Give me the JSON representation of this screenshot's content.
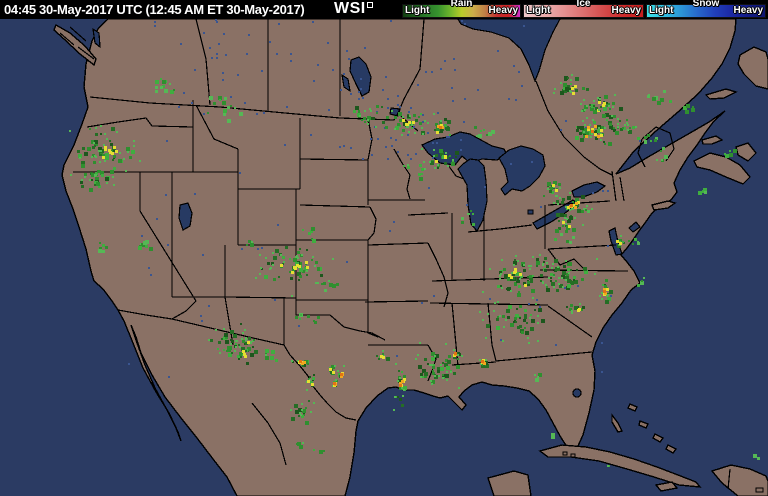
{
  "header": {
    "timestamp": "04:45 30-May-2017 UTC (12:45 AM ET 30-May-2017)",
    "brand": "WSI",
    "bg_color": "#000000",
    "text_color": "#ffffff",
    "legends": [
      {
        "label": "Rain",
        "light": "Light",
        "heavy": "Heavy",
        "stops": [
          "#123f12",
          "#1d5c1d",
          "#2a7d2a",
          "#37932e",
          "#6cb42c",
          "#b8cc2a",
          "#ccad4a",
          "#c08046",
          "#c23030",
          "#cb2424",
          "#cd2fcd"
        ]
      },
      {
        "label": "Ice",
        "light": "Light",
        "heavy": "Heavy",
        "stops": [
          "#efc9c9",
          "#eaafaf",
          "#e49191",
          "#dc6f6f",
          "#d44c4c",
          "#cc2c2c",
          "#c61f1f"
        ]
      },
      {
        "label": "Snow",
        "light": "Light",
        "heavy": "Heavy",
        "stops": [
          "#3ae2ea",
          "#32c0e2",
          "#2c96d6",
          "#2768ca",
          "#2140ba",
          "#1b28a4",
          "#131c86",
          "#0e1670"
        ]
      }
    ]
  },
  "map": {
    "colors": {
      "ocean": "#2b3b63",
      "land": "#8a7165",
      "border": "#000000",
      "lake": "#273a63",
      "water_speckle": "#3a5590",
      "radar_green_dark": "#1d571d",
      "radar_green": "#256e25",
      "radar_green_mid": "#2f8f2f",
      "radar_green_light": "#3fae3f",
      "radar_green_pale": "#55b855",
      "radar_yellow": "#e6df32",
      "radar_orange": "#f0a820",
      "radar_orange_deep": "#e27414"
    },
    "radar_clusters": [
      [
        160,
        66,
        18,
        14,
        12,
        0
      ],
      [
        222,
        88,
        26,
        20,
        14,
        0
      ],
      [
        103,
        131,
        30,
        24,
        45,
        2
      ],
      [
        95,
        160,
        20,
        18,
        22,
        1
      ],
      [
        140,
        225,
        12,
        10,
        8,
        0
      ],
      [
        104,
        228,
        10,
        8,
        6,
        0
      ],
      [
        368,
        96,
        20,
        12,
        16,
        1
      ],
      [
        406,
        104,
        26,
        14,
        28,
        2
      ],
      [
        440,
        108,
        16,
        10,
        14,
        3
      ],
      [
        483,
        112,
        14,
        8,
        8,
        0
      ],
      [
        416,
        148,
        14,
        12,
        10,
        0
      ],
      [
        572,
        68,
        20,
        12,
        18,
        2
      ],
      [
        600,
        86,
        24,
        14,
        24,
        2
      ],
      [
        592,
        112,
        24,
        16,
        30,
        3
      ],
      [
        624,
        106,
        18,
        12,
        14,
        1
      ],
      [
        648,
        120,
        14,
        8,
        8,
        0
      ],
      [
        657,
        76,
        16,
        9,
        8,
        0
      ],
      [
        688,
        88,
        10,
        6,
        5,
        0
      ],
      [
        660,
        135,
        12,
        9,
        6,
        0
      ],
      [
        700,
        172,
        9,
        6,
        4,
        0
      ],
      [
        725,
        133,
        10,
        5,
        5,
        0
      ],
      [
        442,
        138,
        18,
        11,
        18,
        2
      ],
      [
        470,
        198,
        9,
        11,
        7,
        0
      ],
      [
        550,
        168,
        13,
        9,
        11,
        2
      ],
      [
        571,
        186,
        17,
        12,
        22,
        3
      ],
      [
        567,
        205,
        13,
        9,
        11,
        2
      ],
      [
        590,
        190,
        8,
        5,
        4,
        0
      ],
      [
        514,
        256,
        32,
        20,
        42,
        2
      ],
      [
        545,
        244,
        13,
        9,
        9,
        1
      ],
      [
        564,
        216,
        11,
        7,
        6,
        0
      ],
      [
        294,
        246,
        36,
        22,
        46,
        2
      ],
      [
        328,
        262,
        13,
        9,
        7,
        0
      ],
      [
        310,
        214,
        11,
        7,
        6,
        0
      ],
      [
        248,
        222,
        10,
        7,
        5,
        0
      ],
      [
        564,
        256,
        27,
        18,
        36,
        1
      ],
      [
        604,
        272,
        6,
        13,
        10,
        3
      ],
      [
        619,
        223,
        8,
        6,
        6,
        2
      ],
      [
        631,
        222,
        9,
        5,
        5,
        0
      ],
      [
        641,
        262,
        9,
        5,
        5,
        0
      ],
      [
        575,
        288,
        11,
        6,
        7,
        2
      ],
      [
        513,
        300,
        32,
        18,
        36,
        1
      ],
      [
        482,
        342,
        6,
        8,
        8,
        3
      ],
      [
        436,
        348,
        30,
        20,
        38,
        1
      ],
      [
        400,
        366,
        7,
        24,
        16,
        3
      ],
      [
        381,
        336,
        6,
        5,
        5,
        2
      ],
      [
        455,
        334,
        5,
        4,
        4,
        3
      ],
      [
        305,
        298,
        18,
        7,
        8,
        0
      ],
      [
        245,
        330,
        13,
        16,
        16,
        2
      ],
      [
        300,
        342,
        11,
        5,
        8,
        3
      ],
      [
        310,
        361,
        9,
        7,
        7,
        2
      ],
      [
        299,
        391,
        13,
        15,
        14,
        1
      ],
      [
        331,
        350,
        9,
        7,
        7,
        2
      ],
      [
        341,
        355,
        4,
        4,
        4,
        3
      ],
      [
        334,
        364,
        5,
        4,
        4,
        3
      ],
      [
        268,
        334,
        11,
        9,
        7,
        0
      ],
      [
        228,
        329,
        9,
        7,
        5,
        0
      ],
      [
        226,
        318,
        20,
        18,
        18,
        1
      ],
      [
        248,
        321,
        5,
        4,
        4,
        2
      ],
      [
        299,
        424,
        9,
        6,
        4,
        0
      ],
      [
        318,
        431,
        7,
        5,
        3,
        0
      ],
      [
        534,
        357,
        7,
        5,
        4,
        0
      ],
      [
        551,
        413,
        5,
        4,
        3,
        0
      ],
      [
        757,
        437,
        4,
        3,
        2,
        0
      ],
      [
        608,
        446,
        4,
        3,
        2,
        0
      ]
    ]
  }
}
